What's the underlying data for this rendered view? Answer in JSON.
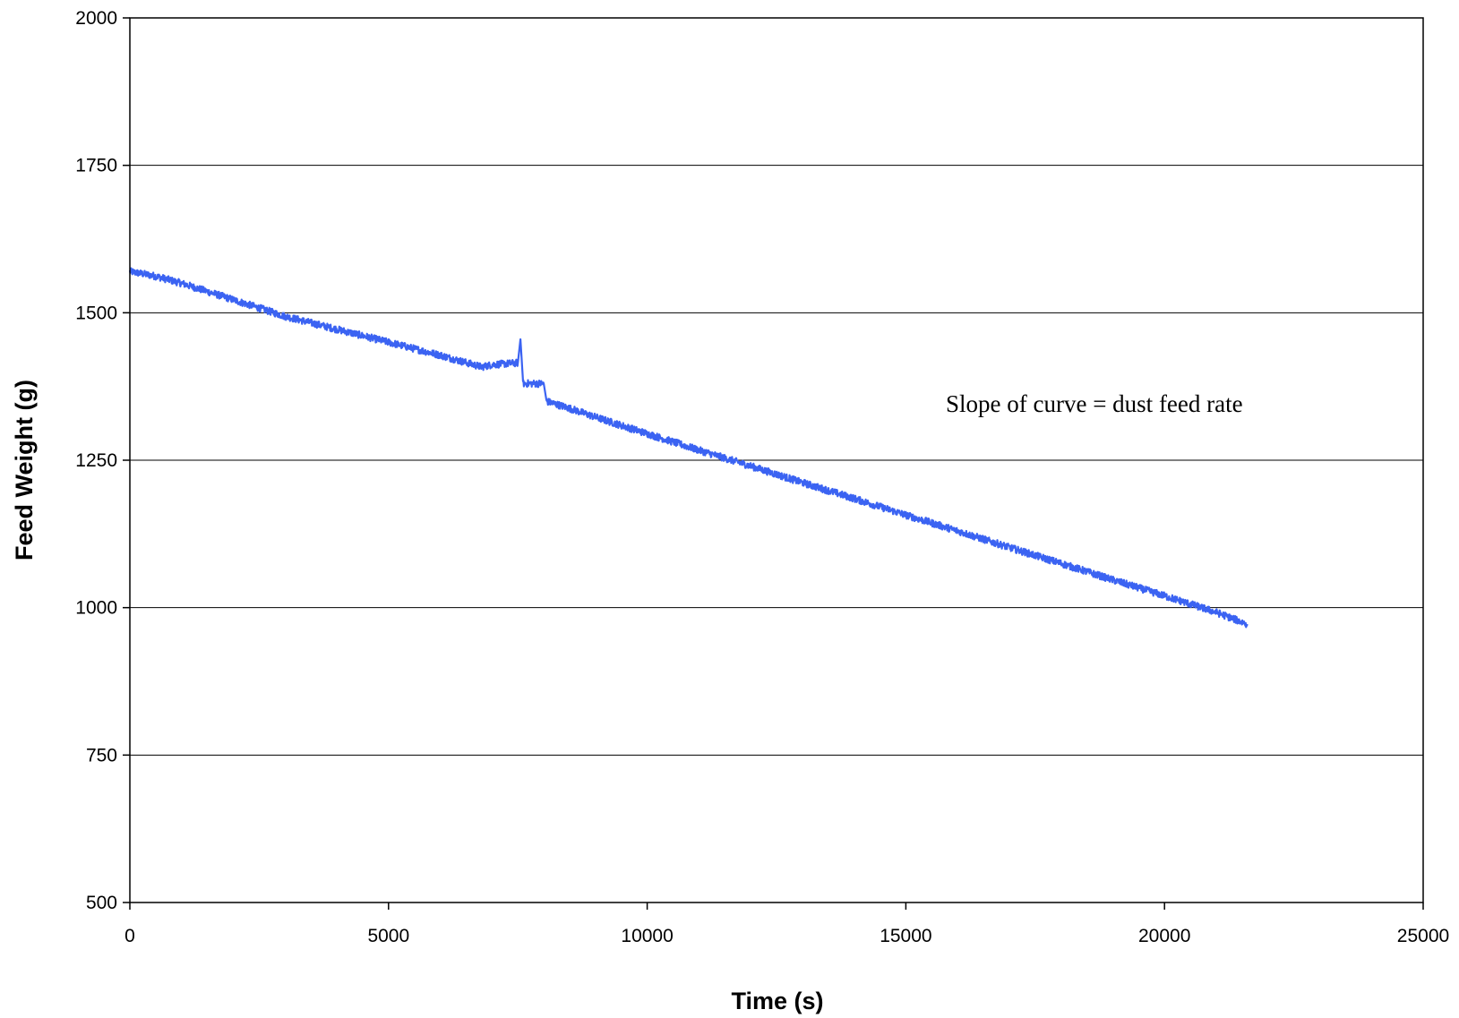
{
  "chart_data": {
    "type": "line",
    "title": "",
    "xlabel": "Time (s)",
    "ylabel": "Feed Weight (g)",
    "xlim": [
      0,
      25000
    ],
    "ylim": [
      500,
      2000
    ],
    "xticks": [
      0,
      5000,
      10000,
      15000,
      20000,
      25000
    ],
    "yticks": [
      500,
      750,
      1000,
      1250,
      1500,
      1750,
      2000
    ],
    "x_tick_labels": [
      "0",
      "5000",
      "10000",
      "15000",
      "20000",
      "25000"
    ],
    "y_tick_labels": [
      "500",
      "750",
      "1000",
      "1250",
      "1500",
      "1750",
      "2000"
    ],
    "grid": "horizontal major gridlines",
    "legend": "none",
    "annotation": "Slope of curve = dust feed rate",
    "colors": {
      "series": "#3b63f2",
      "grid": "#000000",
      "axis": "#000000"
    },
    "series": [
      {
        "x": [
          0,
          500,
          1000,
          2000,
          3000,
          4000,
          5000,
          6000,
          6800,
          7000,
          7500,
          7550,
          7600,
          8000,
          8050,
          8500,
          9000,
          10000,
          11000,
          12000,
          13000,
          14000,
          15000,
          16000,
          17000,
          18000,
          19000,
          20000,
          21000,
          21600
        ],
        "y": [
          1570,
          1562,
          1550,
          1522,
          1494,
          1472,
          1450,
          1428,
          1408,
          1412,
          1415,
          1455,
          1380,
          1380,
          1350,
          1338,
          1323,
          1295,
          1267,
          1240,
          1212,
          1185,
          1157,
          1130,
          1102,
          1075,
          1047,
          1020,
          992,
          972
        ]
      }
    ]
  }
}
